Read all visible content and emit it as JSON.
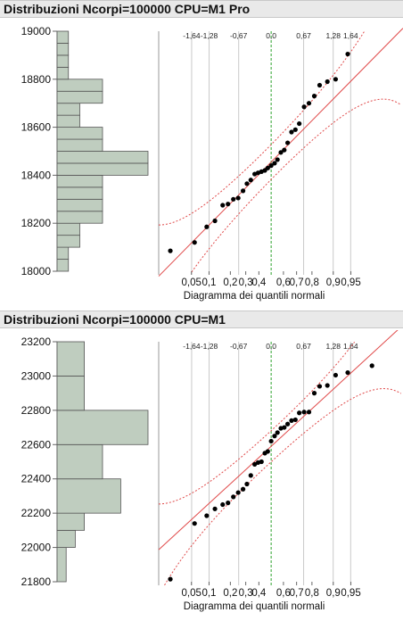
{
  "panels": [
    {
      "title": "Distribuzioni Ncorpi=100000 CPU=M1 Pro",
      "xlabel": "Diagramma dei quantili normali"
    },
    {
      "title": "Distribuzioni Ncorpi=100000 CPU=M1",
      "xlabel": "Diagramma dei quantili normali"
    }
  ],
  "colors": {
    "bar_fill": "#bfcdbf",
    "bar_stroke": "#555555",
    "point": "#000000",
    "fit_line": "#e04a4a",
    "conf_band": "#e04a4a",
    "median_line": "#2aa02a",
    "grid": "#c9c9c9",
    "header_bg": "#e9e9e9"
  },
  "chart_data": [
    {
      "type": "histogram+normal-quantile",
      "title": "Distribuzioni Ncorpi=100000 CPU=M1 Pro",
      "xlabel": "Diagramma dei quantili normali",
      "ylim": [
        18000,
        19000
      ],
      "y_ticks": [
        18000,
        18200,
        18400,
        18600,
        18800,
        19000
      ],
      "histogram": {
        "bin_edges": [
          18000,
          18050,
          18100,
          18150,
          18200,
          18250,
          18300,
          18350,
          18400,
          18450,
          18500,
          18550,
          18600,
          18650,
          18700,
          18750,
          18800,
          18850,
          18900,
          18950,
          19000
        ],
        "counts": [
          1,
          1,
          2,
          2,
          4,
          4,
          4,
          4,
          8,
          8,
          4,
          4,
          2,
          2,
          4,
          4,
          1,
          1,
          1,
          1
        ]
      },
      "quantile_plot": {
        "prob_ticks": [
          "0,05",
          "0,1",
          "0,2",
          "0,3",
          "0,4",
          "0,6",
          "0,7",
          "0,8",
          "0,9",
          "0,95"
        ],
        "prob_values": [
          0.05,
          0.1,
          0.2,
          0.3,
          0.4,
          0.6,
          0.7,
          0.8,
          0.9,
          0.95
        ],
        "z_ticks": [
          "-1,64",
          "-1,28",
          "-0,67",
          "0,0",
          "0,67",
          "1,28",
          "1,64"
        ],
        "z_values": [
          -1.64,
          -1.28,
          -0.67,
          0.0,
          0.67,
          1.28,
          1.64
        ],
        "points": [
          [
            -2.08,
            18085
          ],
          [
            -1.58,
            18120
          ],
          [
            -1.33,
            18185
          ],
          [
            -1.16,
            18210
          ],
          [
            -1.0,
            18275
          ],
          [
            -0.89,
            18280
          ],
          [
            -0.78,
            18300
          ],
          [
            -0.68,
            18305
          ],
          [
            -0.58,
            18335
          ],
          [
            -0.5,
            18365
          ],
          [
            -0.42,
            18380
          ],
          [
            -0.34,
            18405
          ],
          [
            -0.27,
            18410
          ],
          [
            -0.2,
            18415
          ],
          [
            -0.13,
            18420
          ],
          [
            -0.07,
            18430
          ],
          [
            0.0,
            18440
          ],
          [
            0.07,
            18450
          ],
          [
            0.13,
            18465
          ],
          [
            0.2,
            18495
          ],
          [
            0.27,
            18505
          ],
          [
            0.34,
            18535
          ],
          [
            0.42,
            18580
          ],
          [
            0.5,
            18590
          ],
          [
            0.58,
            18615
          ],
          [
            0.68,
            18685
          ],
          [
            0.78,
            18700
          ],
          [
            0.89,
            18730
          ],
          [
            1.0,
            18775
          ],
          [
            1.16,
            18790
          ],
          [
            1.33,
            18800
          ],
          [
            1.58,
            18905
          ]
        ],
        "fit_line": {
          "mean": 18455,
          "sd": 205
        }
      }
    },
    {
      "type": "histogram+normal-quantile",
      "title": "Distribuzioni Ncorpi=100000 CPU=M1",
      "xlabel": "Diagramma dei quantili normali",
      "ylim": [
        21800,
        23200
      ],
      "y_ticks": [
        21800,
        22000,
        22200,
        22400,
        22600,
        22800,
        23000,
        23200
      ],
      "histogram": {
        "bin_edges": [
          21800,
          22000,
          22100,
          22200,
          22400,
          22600,
          22800,
          23000,
          23200
        ],
        "counts": [
          1,
          2,
          3,
          7,
          5,
          10,
          3,
          3
        ]
      },
      "quantile_plot": {
        "prob_ticks": [
          "0,05",
          "0,1",
          "0,2",
          "0,3",
          "0,4",
          "0,6",
          "0,7",
          "0,8",
          "0,9",
          "0,95"
        ],
        "prob_values": [
          0.05,
          0.1,
          0.2,
          0.3,
          0.4,
          0.6,
          0.7,
          0.8,
          0.9,
          0.95
        ],
        "z_ticks": [
          "-1,64",
          "-1,28",
          "-0,67",
          "0,0",
          "0,67",
          "1,28",
          "1,64"
        ],
        "z_values": [
          -1.64,
          -1.28,
          -0.67,
          0.0,
          0.67,
          1.28,
          1.64
        ],
        "points": [
          [
            -2.08,
            21815
          ],
          [
            -1.58,
            22140
          ],
          [
            -1.33,
            22185
          ],
          [
            -1.16,
            22225
          ],
          [
            -1.0,
            22250
          ],
          [
            -0.89,
            22260
          ],
          [
            -0.78,
            22295
          ],
          [
            -0.68,
            22320
          ],
          [
            -0.58,
            22340
          ],
          [
            -0.5,
            22370
          ],
          [
            -0.42,
            22420
          ],
          [
            -0.34,
            22485
          ],
          [
            -0.27,
            22495
          ],
          [
            -0.2,
            22500
          ],
          [
            -0.13,
            22550
          ],
          [
            -0.07,
            22560
          ],
          [
            0.0,
            22620
          ],
          [
            0.07,
            22650
          ],
          [
            0.13,
            22670
          ],
          [
            0.2,
            22695
          ],
          [
            0.27,
            22700
          ],
          [
            0.34,
            22720
          ],
          [
            0.42,
            22740
          ],
          [
            0.5,
            22745
          ],
          [
            0.58,
            22785
          ],
          [
            0.68,
            22790
          ],
          [
            0.78,
            22790
          ],
          [
            0.89,
            22900
          ],
          [
            1.0,
            22940
          ],
          [
            1.16,
            22945
          ],
          [
            1.33,
            23005
          ],
          [
            1.58,
            23020
          ],
          [
            2.08,
            23060
          ]
        ],
        "fit_line": {
          "mean": 22590,
          "sd": 260
        }
      }
    }
  ]
}
